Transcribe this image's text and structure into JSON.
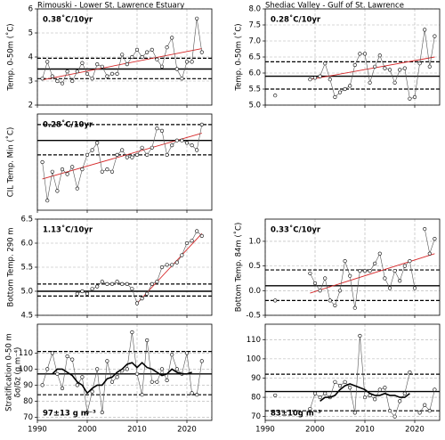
{
  "chart_data": [
    {
      "type": "line",
      "title": "Rimouski - Lower St. Lawrence Estuary",
      "ylabel": [
        "Temp. 0-50m (˚C)"
      ],
      "annotation": "0.38˚C/10yr",
      "xlim": [
        1990,
        2025
      ],
      "xticks": [
        1990,
        2000,
        2010,
        2020
      ],
      "ylim": [
        2,
        6
      ],
      "yticks": [
        2,
        3,
        4,
        5,
        6
      ],
      "grid": true,
      "x": [
        1991,
        1992,
        1993,
        1994,
        1995,
        1996,
        1997,
        1998,
        1999,
        2000,
        2001,
        2002,
        2003,
        2004,
        2005,
        2006,
        2007,
        2008,
        2009,
        2010,
        2011,
        2012,
        2013,
        2014,
        2015,
        2016,
        2017,
        2018,
        2019,
        2020,
        2021,
        2022,
        2023
      ],
      "series": [
        {
          "color": "#555555",
          "marker": "o",
          "values": [
            3.1,
            3.8,
            3.2,
            3.0,
            2.9,
            3.4,
            3.0,
            3.4,
            3.75,
            3.3,
            3.1,
            3.7,
            3.6,
            3.2,
            3.3,
            3.3,
            4.1,
            3.7,
            4.0,
            4.3,
            4.0,
            4.2,
            4.3,
            3.9,
            3.6,
            4.4,
            4.8,
            3.5,
            3.1,
            3.8,
            3.8,
            5.6,
            4.2
          ]
        }
      ],
      "mean": 3.5,
      "sd_lines": [
        3.1,
        3.95
      ],
      "trend": {
        "x": [
          1991,
          2023
        ],
        "y": [
          3.05,
          4.35
        ],
        "color": "#d62728"
      }
    },
    {
      "type": "line",
      "ylabel": [
        "CIL Temp. Min (˚C)"
      ],
      "annotation": "0.28˚C/10yr",
      "xlim": [
        1990,
        2025
      ],
      "xticks": [
        1990,
        2000,
        2010,
        2020
      ],
      "ylim": [
        -1,
        1
      ],
      "grid": true,
      "x": [
        1991,
        1992,
        1993,
        1994,
        1995,
        1996,
        1997,
        1998,
        1999,
        2000,
        2001,
        2002,
        2003,
        2004,
        2005,
        2006,
        2007,
        2008,
        2009,
        2010,
        2011,
        2012,
        2013,
        2014,
        2015,
        2016,
        2017,
        2018,
        2019,
        2020,
        2021,
        2022,
        2023
      ],
      "series": [
        {
          "color": "#555555",
          "marker": "o",
          "values": [
            0.0,
            -0.8,
            -0.2,
            -0.6,
            -0.15,
            -0.25,
            -0.1,
            -0.55,
            -0.15,
            0.15,
            0.25,
            0.4,
            -0.2,
            -0.15,
            -0.2,
            0.15,
            0.25,
            0.1,
            0.1,
            0.15,
            0.3,
            0.15,
            0.3,
            0.7,
            0.65,
            0.15,
            0.35,
            0.45,
            0.45,
            0.4,
            0.35,
            0.25,
            0.78
          ]
        }
      ],
      "mean": 0.45,
      "sd_lines": [
        0.15,
        0.78
      ],
      "trend": {
        "x": [
          1991,
          2023
        ],
        "y": [
          -0.35,
          0.6
        ],
        "color": "#d62728"
      }
    },
    {
      "type": "line",
      "ylabel": [
        "Bottom Temp. 290 m"
      ],
      "annotation": "1.13˚C/10yr",
      "xlim": [
        1990,
        2025
      ],
      "xticks": [
        1990,
        2000,
        2010,
        2020
      ],
      "ylim": [
        4.5,
        6.5
      ],
      "yticks": [
        4.5,
        {
          "value": 5,
          "label": "5.0"
        },
        5.5,
        {
          "value": 6,
          "label": "6.0"
        },
        6.5
      ],
      "grid": true,
      "x": [
        1998,
        1999,
        2000,
        2001,
        2002,
        2003,
        2004,
        2005,
        2006,
        2007,
        2008,
        2009,
        2010,
        2011,
        2012,
        2013,
        2014,
        2015,
        2016,
        2017,
        2018,
        2019,
        2020,
        2021,
        2022,
        2023
      ],
      "series": [
        {
          "color": "#555555",
          "marker": "o",
          "values": [
            4.95,
            5.0,
            4.95,
            5.05,
            5.1,
            5.2,
            5.15,
            5.15,
            5.2,
            5.15,
            5.15,
            5.05,
            4.75,
            4.85,
            4.95,
            5.15,
            5.2,
            5.5,
            5.55,
            5.55,
            5.6,
            5.75,
            6.0,
            6.05,
            6.25,
            6.15
          ]
        }
      ],
      "mean": 5.0,
      "sd_lines": [
        4.9,
        5.15
      ],
      "trend": {
        "x": [
          2010,
          2023
        ],
        "y": [
          4.75,
          6.2
        ],
        "color": "#d62728"
      }
    },
    {
      "type": "line",
      "ylabel": [
        "Stratification 0-50 m",
        "δσ/δz (g m⁻⁴)"
      ],
      "annotation": "97±13 g m⁻³",
      "xlim": [
        1990,
        2025
      ],
      "xticks": [
        1990,
        2000,
        2010,
        2020
      ],
      "ylim": [
        68,
        128
      ],
      "yticks": [
        70,
        80,
        90,
        100,
        110
      ],
      "grid": true,
      "x": [
        1991,
        1992,
        1993,
        1994,
        1995,
        1996,
        1997,
        1998,
        1999,
        2000,
        2001,
        2002,
        2003,
        2004,
        2005,
        2006,
        2007,
        2008,
        2009,
        2010,
        2011,
        2012,
        2013,
        2014,
        2015,
        2016,
        2017,
        2018,
        2019,
        2020,
        2021,
        2022,
        2023
      ],
      "series": [
        {
          "color": "#555555",
          "marker": "o",
          "values": [
            90,
            100,
            110,
            97,
            88,
            108,
            106,
            90,
            95,
            73,
            86,
            100,
            73,
            105,
            92,
            95,
            99,
            100,
            123,
            97,
            84,
            118,
            92,
            92,
            100,
            93,
            109,
            100,
            97,
            110,
            85,
            84,
            105
          ]
        },
        {
          "color": "#000000",
          "values": [
            null,
            null,
            97,
            100,
            100,
            98,
            96,
            92,
            90,
            85,
            88,
            90,
            90,
            94,
            95,
            98,
            100,
            103,
            104,
            101,
            104,
            101,
            100,
            98,
            96,
            97,
            100,
            98,
            97,
            97,
            98,
            null,
            null
          ]
        }
      ],
      "mean": 97,
      "sd_lines": [
        84,
        111
      ]
    },
    {
      "type": "line",
      "title": "Shediac Valley - Gulf of St. Lawrence",
      "ylabel": [
        "Temp. 0-50m (˚C)"
      ],
      "annotation": "0.28˚C/10yr",
      "xlim": [
        1990,
        2025
      ],
      "xticks": [
        1990,
        2000,
        2010,
        2020
      ],
      "ylim": [
        5,
        8
      ],
      "yticks": [
        {
          "value": 5,
          "label": "5.0"
        },
        5.5,
        {
          "value": 6,
          "label": "6.0"
        },
        6.5,
        {
          "value": 7,
          "label": "7.0"
        },
        7.5,
        {
          "value": 8,
          "label": "8.0"
        }
      ],
      "grid": true,
      "x": [
        1992,
        1993,
        1994,
        1995,
        1996,
        1997,
        1998,
        1999,
        2000,
        2001,
        2002,
        2003,
        2004,
        2005,
        2006,
        2007,
        2008,
        2009,
        2010,
        2011,
        2012,
        2013,
        2014,
        2015,
        2016,
        2017,
        2018,
        2019,
        2020,
        2021,
        2022,
        2023,
        2024
      ],
      "series": [
        {
          "color": "#555555",
          "marker": "o",
          "values": [
            5.3,
            null,
            null,
            null,
            null,
            null,
            null,
            5.8,
            5.85,
            5.9,
            6.3,
            5.8,
            5.25,
            5.4,
            5.5,
            5.6,
            6.25,
            6.6,
            6.6,
            5.7,
            6.2,
            6.55,
            6.15,
            6.1,
            5.7,
            6.1,
            6.15,
            5.2,
            5.25,
            6.3,
            7.35,
            6.2,
            7.15
          ]
        }
      ],
      "mean": 5.9,
      "sd_lines": [
        5.5,
        6.35
      ],
      "trend": {
        "x": [
          1999,
          2024
        ],
        "y": [
          5.8,
          6.5
        ],
        "color": "#d62728"
      }
    },
    {
      "type": "line",
      "ylabel": [
        "Bottom Temp. 84m (˚C)"
      ],
      "annotation": "0.33˚C/10yr",
      "xlim": [
        1990,
        2025
      ],
      "xticks": [
        1990,
        2000,
        2010,
        2020
      ],
      "ylim": [
        -0.5,
        1.45
      ],
      "yticks": [
        -0.5,
        {
          "value": 0,
          "label": "0.0"
        },
        0.5,
        {
          "value": 1,
          "label": "1.0"
        }
      ],
      "grid": true,
      "x": [
        1992,
        1993,
        1994,
        1995,
        1996,
        1997,
        1998,
        1999,
        2000,
        2001,
        2002,
        2003,
        2004,
        2005,
        2006,
        2007,
        2008,
        2009,
        2010,
        2011,
        2012,
        2013,
        2014,
        2015,
        2016,
        2017,
        2018,
        2019,
        2020,
        2021,
        2022,
        2023,
        2024
      ],
      "series": [
        {
          "color": "#555555",
          "marker": "o",
          "values": [
            -0.2,
            null,
            null,
            null,
            null,
            null,
            null,
            0.35,
            0.15,
            0.0,
            0.25,
            -0.2,
            -0.3,
            0.0,
            0.6,
            0.3,
            -0.35,
            0.4,
            0.4,
            0.4,
            0.55,
            0.75,
            0.25,
            0.05,
            0.4,
            0.2,
            0.5,
            0.6,
            0.05,
            null,
            1.25,
            0.75,
            1.05
          ]
        }
      ],
      "mean": 0.1,
      "sd_lines": [
        -0.2,
        0.42
      ],
      "trend": {
        "x": [
          1999,
          2024
        ],
        "y": [
          -0.05,
          0.75
        ],
        "color": "#d62728"
      }
    },
    {
      "type": "line",
      "annotation": "83±10g m⁻³",
      "xlim": [
        1990,
        2025
      ],
      "xticks": [
        1990,
        2000,
        2010,
        2020
      ],
      "ylim": [
        68,
        118
      ],
      "yticks": [
        70,
        80,
        90,
        100,
        110
      ],
      "grid": true,
      "x": [
        1992,
        1993,
        1994,
        1995,
        1996,
        1997,
        1998,
        1999,
        2000,
        2001,
        2002,
        2003,
        2004,
        2005,
        2006,
        2007,
        2008,
        2009,
        2010,
        2011,
        2012,
        2013,
        2014,
        2015,
        2016,
        2017,
        2018,
        2019,
        2020,
        2021,
        2022,
        2023,
        2024
      ],
      "series": [
        {
          "color": "#555555",
          "marker": "o",
          "values": [
            81,
            null,
            null,
            null,
            null,
            null,
            null,
            74,
            82,
            80,
            82,
            80,
            88,
            86,
            88,
            85,
            72,
            112,
            80,
            81,
            79,
            84,
            85,
            73,
            70,
            78,
            82,
            93,
            null,
            72,
            76,
            73,
            84
          ]
        },
        {
          "color": "#000000",
          "values": [
            null,
            null,
            null,
            null,
            null,
            null,
            null,
            null,
            null,
            78,
            80,
            80,
            81,
            84,
            86,
            87,
            86,
            85,
            84,
            82,
            81,
            81,
            82,
            81,
            81,
            80,
            80,
            82,
            null,
            null,
            null,
            null,
            null
          ]
        }
      ],
      "mean": 83,
      "sd_lines": [
        73,
        92
      ]
    }
  ]
}
